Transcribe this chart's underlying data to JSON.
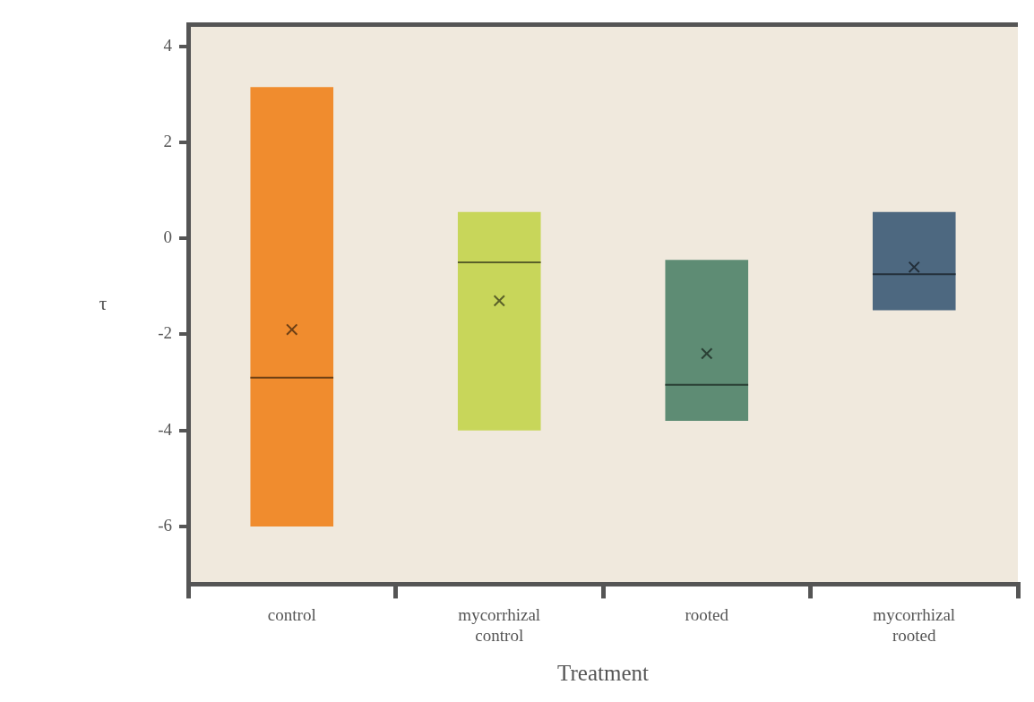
{
  "chart_data": {
    "type": "box",
    "xlabel": "Treatment",
    "ylabel": "τ",
    "categories": [
      "control",
      "mycorrhizal control",
      "rooted",
      "mycorrhizal rooted"
    ],
    "boxes": [
      {
        "low": -6.0,
        "q1": -6.0,
        "median": -2.9,
        "q3": 3.15,
        "high": 3.15,
        "mean": -1.9
      },
      {
        "low": -4.0,
        "q1": -4.0,
        "median": -0.5,
        "q3": 0.55,
        "high": 0.55,
        "mean": -1.3
      },
      {
        "low": -3.8,
        "q1": -3.8,
        "median": -3.05,
        "q3": -0.45,
        "high": -0.45,
        "mean": -2.4
      },
      {
        "low": -1.5,
        "q1": -1.5,
        "median": -0.75,
        "q3": 0.55,
        "high": 0.55,
        "mean": -0.6
      }
    ],
    "colors": [
      "#f08c2e",
      "#c8d65a",
      "#5e8c74",
      "#4d6880"
    ],
    "ylim": [
      -7.2,
      4.45
    ],
    "yticks": [
      -6,
      -4,
      -2,
      0,
      2,
      4
    ]
  }
}
